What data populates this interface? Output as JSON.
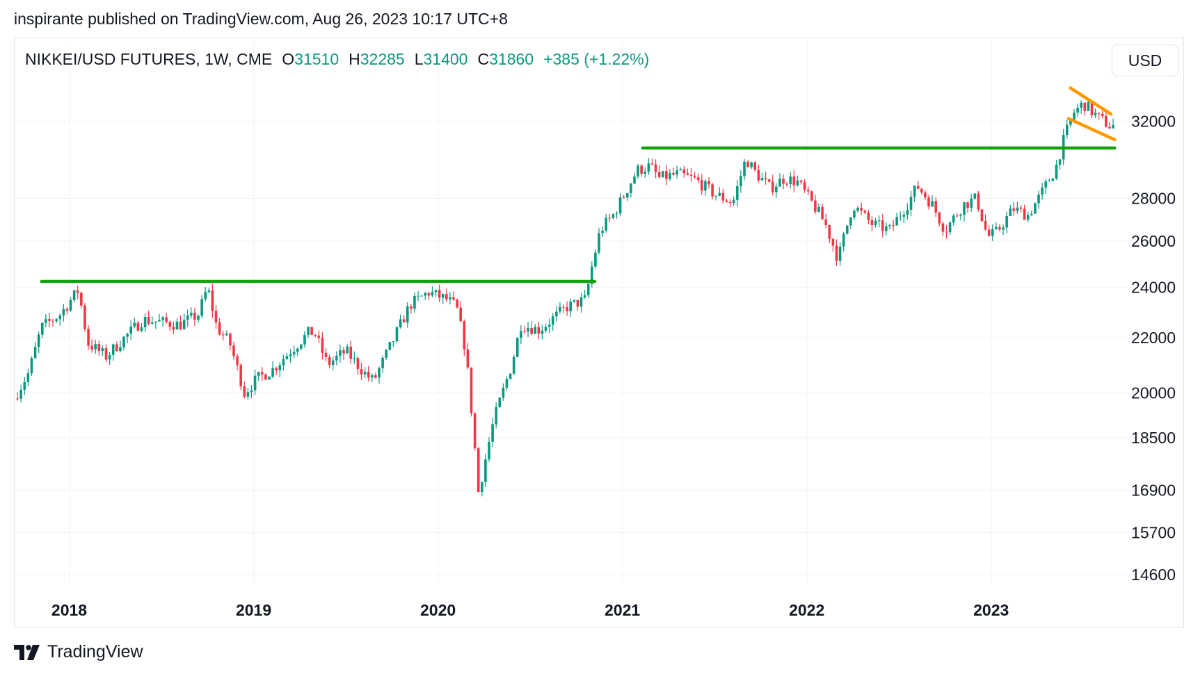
{
  "header": {
    "published_by": "inspirante published on TradingView.com, Aug 26, 2023 10:17 UTC+8"
  },
  "legend": {
    "symbol": "NIKKEI/USD FUTURES, 1W, CME",
    "o_label": "O",
    "o_value": "31510",
    "h_label": "H",
    "h_value": "32285",
    "l_label": "L",
    "l_value": "31400",
    "c_label": "C",
    "c_value": "31860",
    "change": "+385 (+1.22%)"
  },
  "currency_button": "USD",
  "footer": {
    "brand": "TradingView",
    "logo_icon": "tradingview-logo-icon"
  },
  "colors": {
    "up": "#089981",
    "down": "#f23645",
    "support": "#13a10e",
    "channel": "#ff9800",
    "grid": "#f0f3fa"
  },
  "chart_data": {
    "type": "candlestick",
    "timeframe": "1W",
    "x_range": [
      2017.7,
      2023.85
    ],
    "y_range": [
      14200,
      35000
    ],
    "y_scale": "log",
    "x_ticks": [
      {
        "label": "2018",
        "x": 2018.0
      },
      {
        "label": "2019",
        "x": 2019.0
      },
      {
        "label": "2020",
        "x": 2020.0
      },
      {
        "label": "2021",
        "x": 2021.0
      },
      {
        "label": "2022",
        "x": 2022.0
      },
      {
        "label": "2023",
        "x": 2023.0
      }
    ],
    "y_ticks": [
      {
        "label": "32000",
        "value": 32000
      },
      {
        "label": "28000",
        "value": 28000
      },
      {
        "label": "26000",
        "value": 26000
      },
      {
        "label": "24000",
        "value": 24000
      },
      {
        "label": "22000",
        "value": 22000
      },
      {
        "label": "20000",
        "value": 20000
      },
      {
        "label": "18500",
        "value": 18500
      },
      {
        "label": "16900",
        "value": 16900
      },
      {
        "label": "15700",
        "value": 15700
      },
      {
        "label": "14600",
        "value": 14600
      }
    ],
    "grid": true,
    "close_anchors": [
      [
        2017.7,
        19800
      ],
      [
        2017.78,
        20700
      ],
      [
        2017.85,
        22400
      ],
      [
        2017.95,
        22900
      ],
      [
        2018.05,
        23900
      ],
      [
        2018.1,
        21800
      ],
      [
        2018.2,
        21300
      ],
      [
        2018.3,
        22000
      ],
      [
        2018.4,
        22700
      ],
      [
        2018.5,
        22600
      ],
      [
        2018.6,
        22500
      ],
      [
        2018.7,
        22900
      ],
      [
        2018.75,
        24000
      ],
      [
        2018.8,
        22400
      ],
      [
        2018.87,
        21800
      ],
      [
        2018.95,
        20000
      ],
      [
        2019.02,
        20500
      ],
      [
        2019.1,
        20800
      ],
      [
        2019.2,
        21500
      ],
      [
        2019.3,
        22200
      ],
      [
        2019.33,
        22200
      ],
      [
        2019.4,
        21000
      ],
      [
        2019.5,
        21500
      ],
      [
        2019.6,
        20700
      ],
      [
        2019.65,
        20400
      ],
      [
        2019.75,
        21800
      ],
      [
        2019.85,
        23300
      ],
      [
        2019.95,
        23800
      ],
      [
        2020.05,
        23500
      ],
      [
        2020.1,
        23200
      ],
      [
        2020.15,
        21500
      ],
      [
        2020.22,
        16800
      ],
      [
        2020.3,
        19000
      ],
      [
        2020.4,
        21000
      ],
      [
        2020.45,
        22500
      ],
      [
        2020.55,
        22300
      ],
      [
        2020.7,
        23200
      ],
      [
        2020.8,
        23500
      ],
      [
        2020.83,
        24700
      ],
      [
        2020.88,
        26500
      ],
      [
        2020.95,
        27200
      ],
      [
        2021.0,
        28000
      ],
      [
        2021.08,
        29400
      ],
      [
        2021.15,
        29600
      ],
      [
        2021.2,
        29000
      ],
      [
        2021.3,
        29200
      ],
      [
        2021.4,
        28900
      ],
      [
        2021.5,
        28200
      ],
      [
        2021.6,
        27800
      ],
      [
        2021.67,
        30000
      ],
      [
        2021.72,
        29300
      ],
      [
        2021.8,
        28500
      ],
      [
        2021.88,
        29000
      ],
      [
        2021.95,
        28800
      ],
      [
        2022.05,
        27500
      ],
      [
        2022.1,
        26800
      ],
      [
        2022.17,
        25200
      ],
      [
        2022.25,
        27700
      ],
      [
        2022.35,
        26800
      ],
      [
        2022.45,
        26500
      ],
      [
        2022.55,
        27800
      ],
      [
        2022.6,
        28600
      ],
      [
        2022.68,
        27700
      ],
      [
        2022.75,
        26500
      ],
      [
        2022.85,
        27700
      ],
      [
        2022.92,
        28000
      ],
      [
        2022.98,
        26200
      ],
      [
        2023.03,
        26400
      ],
      [
        2023.12,
        27500
      ],
      [
        2023.2,
        27200
      ],
      [
        2023.27,
        28200
      ],
      [
        2023.35,
        29500
      ],
      [
        2023.4,
        31200
      ],
      [
        2023.45,
        32500
      ],
      [
        2023.5,
        33000
      ],
      [
        2023.58,
        32200
      ],
      [
        2023.65,
        31700
      ],
      [
        2023.67,
        31860
      ]
    ],
    "drawings": [
      {
        "type": "horizontal-segment",
        "name": "support-line-2018-2020",
        "value": 24250,
        "x_start": 2017.85,
        "x_end": 2020.85,
        "color": "#13a10e"
      },
      {
        "type": "horizontal-segment",
        "name": "support-line-2021-2023",
        "value": 30550,
        "x_start": 2021.11,
        "x_end": 2023.67,
        "color": "#13a10e"
      },
      {
        "type": "trend-line",
        "name": "channel-upper-line",
        "from": [
          2023.43,
          33900
        ],
        "to": [
          2023.65,
          32400
        ],
        "color": "#ff9800"
      },
      {
        "type": "trend-line",
        "name": "channel-lower-line",
        "from": [
          2023.42,
          32150
        ],
        "to": [
          2023.67,
          31000
        ],
        "color": "#ff9800"
      }
    ]
  }
}
